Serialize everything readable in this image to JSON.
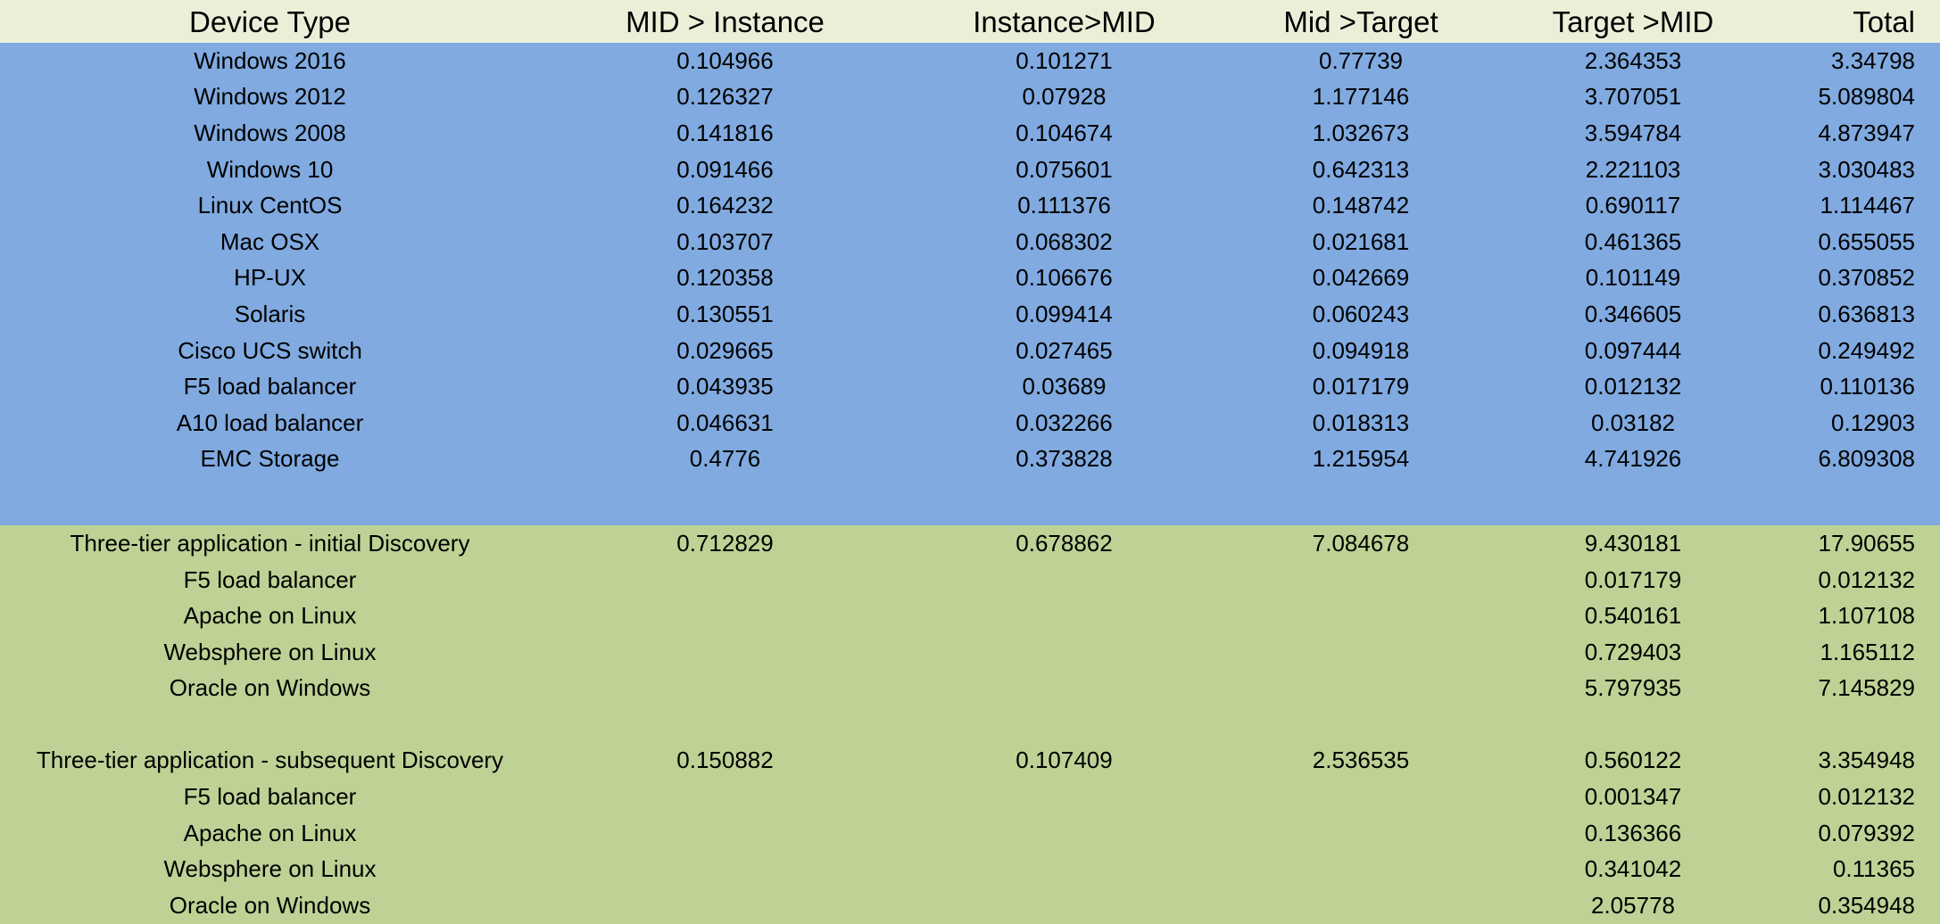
{
  "table": {
    "headers": [
      "Device Type",
      "MID > Instance",
      "Instance>MID",
      "Mid >Target",
      "Target >MID",
      "Total"
    ],
    "device_rows": [
      [
        "Windows 2016",
        "0.104966",
        "0.101271",
        "0.77739",
        "2.364353",
        "3.34798"
      ],
      [
        "Windows 2012",
        "0.126327",
        "0.07928",
        "1.177146",
        "3.707051",
        "5.089804"
      ],
      [
        "Windows 2008",
        "0.141816",
        "0.104674",
        "1.032673",
        "3.594784",
        "4.873947"
      ],
      [
        "Windows 10",
        "0.091466",
        "0.075601",
        "0.642313",
        "2.221103",
        "3.030483"
      ],
      [
        "Linux CentOS",
        "0.164232",
        "0.111376",
        "0.148742",
        "0.690117",
        "1.114467"
      ],
      [
        "Mac OSX",
        "0.103707",
        "0.068302",
        "0.021681",
        "0.461365",
        "0.655055"
      ],
      [
        "HP-UX",
        "0.120358",
        "0.106676",
        "0.042669",
        "0.101149",
        "0.370852"
      ],
      [
        "Solaris",
        "0.130551",
        "0.099414",
        "0.060243",
        "0.346605",
        "0.636813"
      ],
      [
        "Cisco UCS switch",
        "0.029665",
        "0.027465",
        "0.094918",
        "0.097444",
        "0.249492"
      ],
      [
        "F5 load balancer",
        "0.043935",
        "0.03689",
        "0.017179",
        "0.012132",
        "0.110136"
      ],
      [
        "A10 load balancer",
        "0.046631",
        "0.032266",
        "0.018313",
        "0.03182",
        "0.12903"
      ],
      [
        "EMC Storage",
        "0.4776",
        "0.373828",
        "1.215954",
        "4.741926",
        "6.809308"
      ]
    ],
    "initial_discovery_rows": [
      [
        "Three-tier application - initial Discovery",
        "0.712829",
        "0.678862",
        "7.084678",
        "9.430181",
        "17.90655"
      ],
      [
        "F5 load balancer",
        "",
        "",
        "",
        "0.017179",
        "0.012132"
      ],
      [
        "Apache on Linux",
        "",
        "",
        "",
        "0.540161",
        "1.107108"
      ],
      [
        "Websphere on Linux",
        "",
        "",
        "",
        "0.729403",
        "1.165112"
      ],
      [
        "Oracle on Windows",
        "",
        "",
        "",
        "5.797935",
        "7.145829"
      ]
    ],
    "subsequent_discovery_rows": [
      [
        "Three-tier application - subsequent Discovery",
        "0.150882",
        "0.107409",
        "2.536535",
        "0.560122",
        "3.354948"
      ],
      [
        "F5 load balancer",
        "",
        "",
        "",
        "0.001347",
        "0.012132"
      ],
      [
        "Apache on Linux",
        "",
        "",
        "",
        "0.136366",
        "0.079392"
      ],
      [
        "Websphere on Linux",
        "",
        "",
        "",
        "0.341042",
        "0.11365"
      ],
      [
        "Oracle on Windows",
        "",
        "",
        "",
        "2.05778",
        "0.354948"
      ]
    ]
  },
  "colors": {
    "header_bg": "#eaf0d8",
    "device_section_bg": "#80aae0",
    "application_section_bg": "#bed295"
  }
}
